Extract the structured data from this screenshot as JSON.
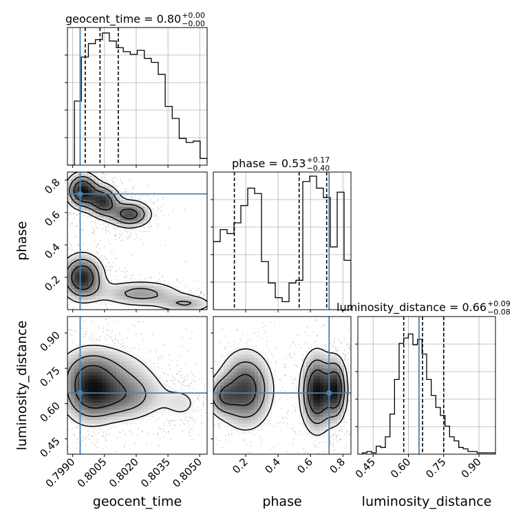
{
  "chart_data": {
    "type": "corner",
    "parameters": [
      "geocent_time",
      "phase",
      "luminosity_distance"
    ],
    "truth_color": "#4682b4",
    "truths": [
      0.79935,
      0.715,
      0.645
    ],
    "titles": [
      {
        "label": "geocent_time = 0.80",
        "sup": "+0.00",
        "sub": "−0.00"
      },
      {
        "label": "phase = 0.53",
        "sup": "+0.17",
        "sub": "−0.40"
      },
      {
        "label": "luminosity_distance = 0.66",
        "sup": "+0.09",
        "sub": "−0.08"
      }
    ],
    "ranges": [
      [
        0.79875,
        0.80535
      ],
      [
        0.0,
        0.85
      ],
      [
        0.385,
        0.97
      ]
    ],
    "ticks": [
      {
        "values": [
          0.799,
          0.8005,
          0.802,
          0.8035,
          0.805
        ],
        "labels": [
          "0.7990",
          "0.8005",
          "0.8020",
          "0.8035",
          "0.8050"
        ]
      },
      {
        "values": [
          0.2,
          0.4,
          0.6,
          0.8
        ],
        "labels": [
          "0.2",
          "0.4",
          "0.6",
          "0.8"
        ]
      },
      {
        "values": [
          0.45,
          0.6,
          0.75,
          0.9
        ],
        "labels": [
          "0.45",
          "0.60",
          "0.75",
          "0.90"
        ]
      }
    ],
    "quantiles": [
      [
        0.79959,
        0.80029,
        0.80115
      ],
      [
        0.13,
        0.53,
        0.7
      ],
      [
        0.58,
        0.66,
        0.75
      ]
    ],
    "histograms": [
      {
        "edges_start": 0.79875,
        "edges_step": 0.00033,
        "heights": [
          0.0,
          0.48,
          0.81,
          0.91,
          0.94,
          0.99,
          0.93,
          0.88,
          0.85,
          0.83,
          0.86,
          0.8,
          0.77,
          0.68,
          0.44,
          0.35,
          0.2,
          0.17,
          0.18,
          0.05,
          0.02
        ]
      },
      {
        "edges_start": 0.0,
        "edges_step": 0.0425,
        "heights": [
          0.51,
          0.6,
          0.57,
          0.65,
          0.78,
          0.91,
          0.87,
          0.36,
          0.2,
          0.09,
          0.06,
          0.2,
          0.22,
          0.96,
          1.0,
          0.91,
          0.84,
          0.47,
          0.88,
          0.37
        ]
      },
      {
        "edges_start": 0.385,
        "edges_step": 0.0195,
        "heights": [
          0.0,
          0.01,
          0.02,
          0.01,
          0.06,
          0.05,
          0.13,
          0.3,
          0.56,
          0.83,
          0.87,
          0.9,
          0.82,
          0.86,
          0.75,
          0.56,
          0.44,
          0.35,
          0.29,
          0.21,
          0.13,
          0.1,
          0.05,
          0.04,
          0.02,
          0.02,
          0.01,
          0.01,
          0.01,
          0.01
        ]
      }
    ],
    "contours_2d": [
      {
        "pair": [
          "geocent_time",
          "phase"
        ],
        "blobs": [
          {
            "center": [
              0.79945,
              0.735
            ],
            "radii": [
              0.00045,
              0.065
            ],
            "weight": 1.0
          },
          {
            "center": [
              0.80045,
              0.67
            ],
            "radii": [
              0.00045,
              0.06
            ],
            "weight": 0.85
          },
          {
            "center": [
              0.8017,
              0.59
            ],
            "radii": [
              0.0006,
              0.05
            ],
            "weight": 0.8
          },
          {
            "center": [
              0.79945,
              0.2
            ],
            "radii": [
              0.0006,
              0.085
            ],
            "weight": 0.95
          },
          {
            "center": [
              0.8022,
              0.1
            ],
            "radii": [
              0.0012,
              0.05
            ],
            "weight": 0.5
          },
          {
            "center": [
              0.8044,
              0.035
            ],
            "radii": [
              0.0008,
              0.035
            ],
            "weight": 0.4
          }
        ]
      },
      {
        "pair": [
          "geocent_time",
          "luminosity_distance"
        ],
        "blobs": [
          {
            "center": [
              0.79975,
              0.66
            ],
            "radii": [
              0.0008,
              0.09
            ],
            "weight": 1.0
          },
          {
            "center": [
              0.8014,
              0.63
            ],
            "radii": [
              0.0012,
              0.065
            ],
            "weight": 0.8
          },
          {
            "center": [
              0.8005,
              0.75
            ],
            "radii": [
              0.0015,
              0.07
            ],
            "weight": 0.45
          },
          {
            "center": [
              0.8042,
              0.6
            ],
            "radii": [
              0.0006,
              0.05
            ],
            "weight": 0.3
          }
        ]
      },
      {
        "pair": [
          "phase",
          "luminosity_distance"
        ],
        "blobs": [
          {
            "center": [
              0.2,
              0.66
            ],
            "radii": [
              0.1,
              0.1
            ],
            "weight": 0.8
          },
          {
            "center": [
              0.05,
              0.63
            ],
            "radii": [
              0.06,
              0.05
            ],
            "weight": 0.45
          },
          {
            "center": [
              0.64,
              0.65
            ],
            "radii": [
              0.06,
              0.1
            ],
            "weight": 1.0
          },
          {
            "center": [
              0.76,
              0.66
            ],
            "radii": [
              0.04,
              0.08
            ],
            "weight": 0.85
          }
        ]
      }
    ],
    "grid": true,
    "xlabel_fontsize_note": "labels shown on bottom row and left column only"
  }
}
